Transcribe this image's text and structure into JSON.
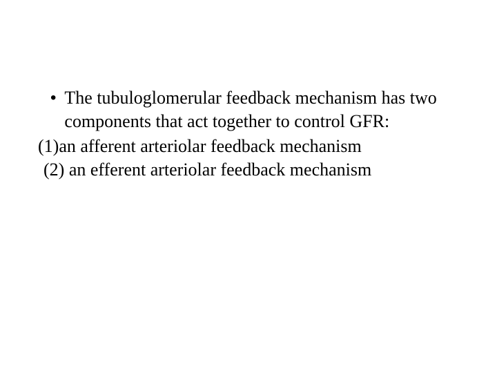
{
  "slide": {
    "background_color": "#ffffff",
    "text_color": "#000000",
    "font_family": "Times New Roman",
    "font_size_pt": 20,
    "line_height": 34,
    "bullet_marker": "•",
    "main_text": "The tubuloglomerular feedback mechanism has two components that act together to control GFR:",
    "item1_prefix": "(1)",
    "item1_text": "an afferent arteriolar feedback mechanism",
    "item2_prefix": "(2)",
    "item2_text": "an efferent arteriolar feedback mechanism"
  }
}
